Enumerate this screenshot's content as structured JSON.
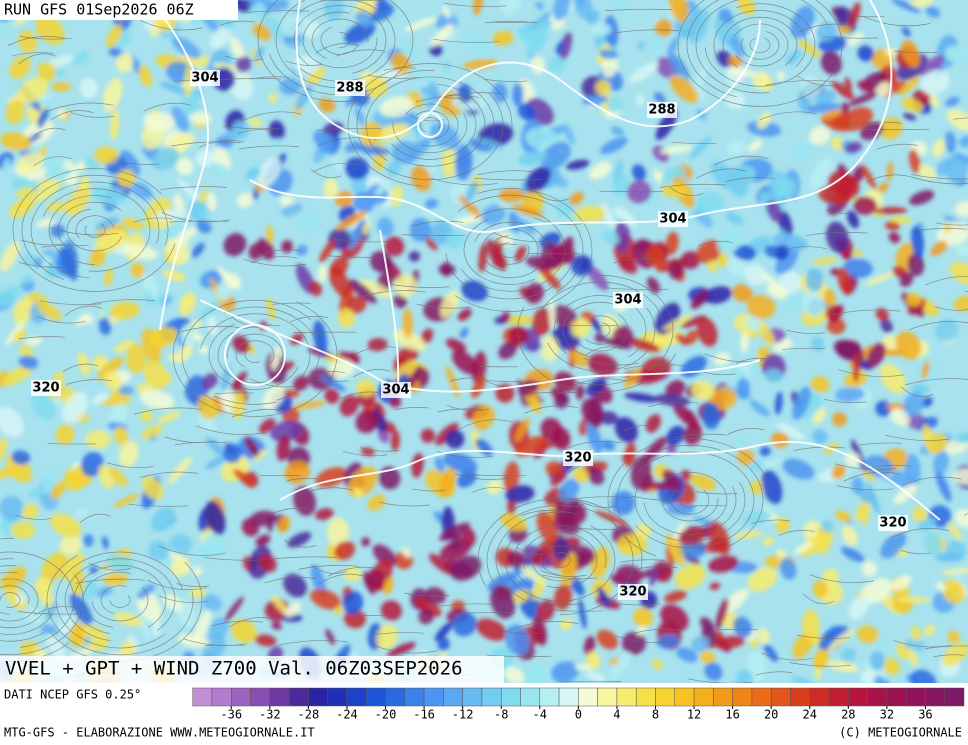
{
  "header": {
    "run": "RUN GFS 01Sep2026 06Z"
  },
  "map": {
    "title": "VVEL + GPT + WIND Z700 Val. 06Z03SEP2026",
    "contour_labels": [
      304,
      288,
      288,
      304,
      304,
      320,
      304,
      320,
      320,
      320
    ]
  },
  "legend": {
    "source": "DATI NCEP GFS 0.25°",
    "range": [
      -40,
      40
    ],
    "ticks": [
      -36,
      -32,
      -28,
      -24,
      -20,
      -16,
      -12,
      -8,
      -4,
      0,
      4,
      8,
      12,
      16,
      20,
      24,
      28,
      32,
      36
    ],
    "colors": [
      "#c58fd8",
      "#b37cce",
      "#9c62bf",
      "#8a4eb3",
      "#6e3aa6",
      "#4b2a9a",
      "#2d22a3",
      "#1f2fb8",
      "#1c42c9",
      "#1d55d6",
      "#2a6ae0",
      "#3c80ea",
      "#4d95f0",
      "#5ba8f2",
      "#67bbf1",
      "#72cdf0",
      "#7fdcef",
      "#98e6f0",
      "#b6eff2",
      "#d6f6f6",
      "#f4fbd6",
      "#f8f59e",
      "#f8ec6e",
      "#f6e04a",
      "#f6d330",
      "#f6c322",
      "#f5ae1c",
      "#f39a1a",
      "#ef8418",
      "#ea6c18",
      "#e2561a",
      "#d8401d",
      "#cc2d25",
      "#c11f30",
      "#b5173c",
      "#a81347",
      "#9c1250",
      "#901359",
      "#871661",
      "#7d1a68"
    ]
  },
  "footer": {
    "left": "MTG-GFS - ELABORAZIONE WWW.METEOGIORNALE.IT",
    "right": "(C) METEOGIORNALE"
  }
}
